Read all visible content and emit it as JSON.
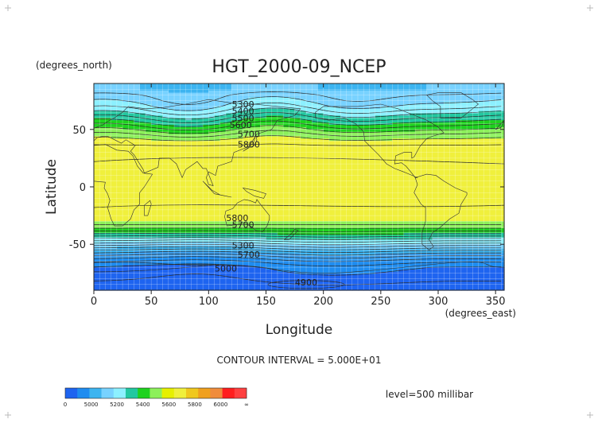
{
  "chart_data": {
    "type": "heatmap",
    "title": "HGT_2000-09_NCEP",
    "xlabel": "Longitude",
    "ylabel": "Latitude",
    "x_unit": "(degrees_east)",
    "y_unit": "(degrees_north)",
    "xlim": [
      0,
      357.5
    ],
    "ylim": [
      -90,
      90
    ],
    "x_ticks": [
      "0",
      "50",
      "100",
      "150",
      "200",
      "250",
      "300",
      "350"
    ],
    "y_ticks": [
      "50",
      "0",
      "-50"
    ],
    "contour_interval_text": "CONTOUR INTERVAL = 5.000E+01",
    "level_text": "level=500 millibar",
    "contour_labels": [
      {
        "text": "5300",
        "x": 130,
        "y": 72
      },
      {
        "text": "5400",
        "x": 130,
        "y": 66
      },
      {
        "text": "5500",
        "x": 130,
        "y": 60
      },
      {
        "text": "5600",
        "x": 128,
        "y": 54
      },
      {
        "text": "5700",
        "x": 135,
        "y": 46
      },
      {
        "text": "5800",
        "x": 135,
        "y": 37
      },
      {
        "text": "5800",
        "x": 125,
        "y": -27
      },
      {
        "text": "5700",
        "x": 130,
        "y": -33
      },
      {
        "text": "5300",
        "x": 130,
        "y": -51
      },
      {
        "text": "5700",
        "x": 135,
        "y": -59
      },
      {
        "text": "5000",
        "x": 115,
        "y": -71
      },
      {
        "text": "4900",
        "x": 185,
        "y": -83
      }
    ],
    "colorbar": {
      "labels": [
        "0",
        "5000",
        "5200",
        "5400",
        "5600",
        "5800",
        "6000",
        "∞"
      ],
      "colors": [
        "#1e64f0",
        "#1e8cf0",
        "#3cb4f0",
        "#78d2ff",
        "#8cf0ff",
        "#22c8a0",
        "#1ed21e",
        "#8cf05a",
        "#e6f000",
        "#f0f03c",
        "#f0c81e",
        "#f0a01e",
        "#f08c3c",
        "#ff1e1e",
        "#ff4040"
      ]
    },
    "band_levels": [
      4800,
      4900,
      5000,
      5100,
      5200,
      5300,
      5400,
      5500,
      5600,
      5700,
      5800,
      5900,
      6000,
      6200
    ],
    "band_colors": [
      "#1e64f0",
      "#1e64f0",
      "#1e8cf0",
      "#3ca0f0",
      "#3cb4f0",
      "#78d2ff",
      "#8cf0ff",
      "#22c8a0",
      "#1ed21e",
      "#8cf05a",
      "#f0f03c",
      "#f0c81e",
      "#f0a01e",
      "#f0a01e"
    ],
    "zonal_profile": [
      {
        "lat": 90,
        "z": 5300
      },
      {
        "lat": 85,
        "z": 5300
      },
      {
        "lat": 80,
        "z": 5350
      },
      {
        "lat": 75,
        "z": 5380
      },
      {
        "lat": 70,
        "z": 5420
      },
      {
        "lat": 65,
        "z": 5480
      },
      {
        "lat": 60,
        "z": 5550
      },
      {
        "lat": 55,
        "z": 5620
      },
      {
        "lat": 50,
        "z": 5690
      },
      {
        "lat": 45,
        "z": 5760
      },
      {
        "lat": 40,
        "z": 5820
      },
      {
        "lat": 35,
        "z": 5860
      },
      {
        "lat": 30,
        "z": 5880
      },
      {
        "lat": 20,
        "z": 5880
      },
      {
        "lat": 10,
        "z": 5870
      },
      {
        "lat": 0,
        "z": 5870
      },
      {
        "lat": -10,
        "z": 5870
      },
      {
        "lat": -20,
        "z": 5860
      },
      {
        "lat": -25,
        "z": 5840
      },
      {
        "lat": -30,
        "z": 5790
      },
      {
        "lat": -35,
        "z": 5720
      },
      {
        "lat": -40,
        "z": 5620
      },
      {
        "lat": -45,
        "z": 5500
      },
      {
        "lat": -50,
        "z": 5380
      },
      {
        "lat": -55,
        "z": 5260
      },
      {
        "lat": -60,
        "z": 5150
      },
      {
        "lat": -65,
        "z": 5060
      },
      {
        "lat": -70,
        "z": 5000
      },
      {
        "lat": -75,
        "z": 4980
      },
      {
        "lat": -80,
        "z": 4960
      },
      {
        "lat": -85,
        "z": 4940
      },
      {
        "lat": -90,
        "z": 4940
      }
    ]
  }
}
